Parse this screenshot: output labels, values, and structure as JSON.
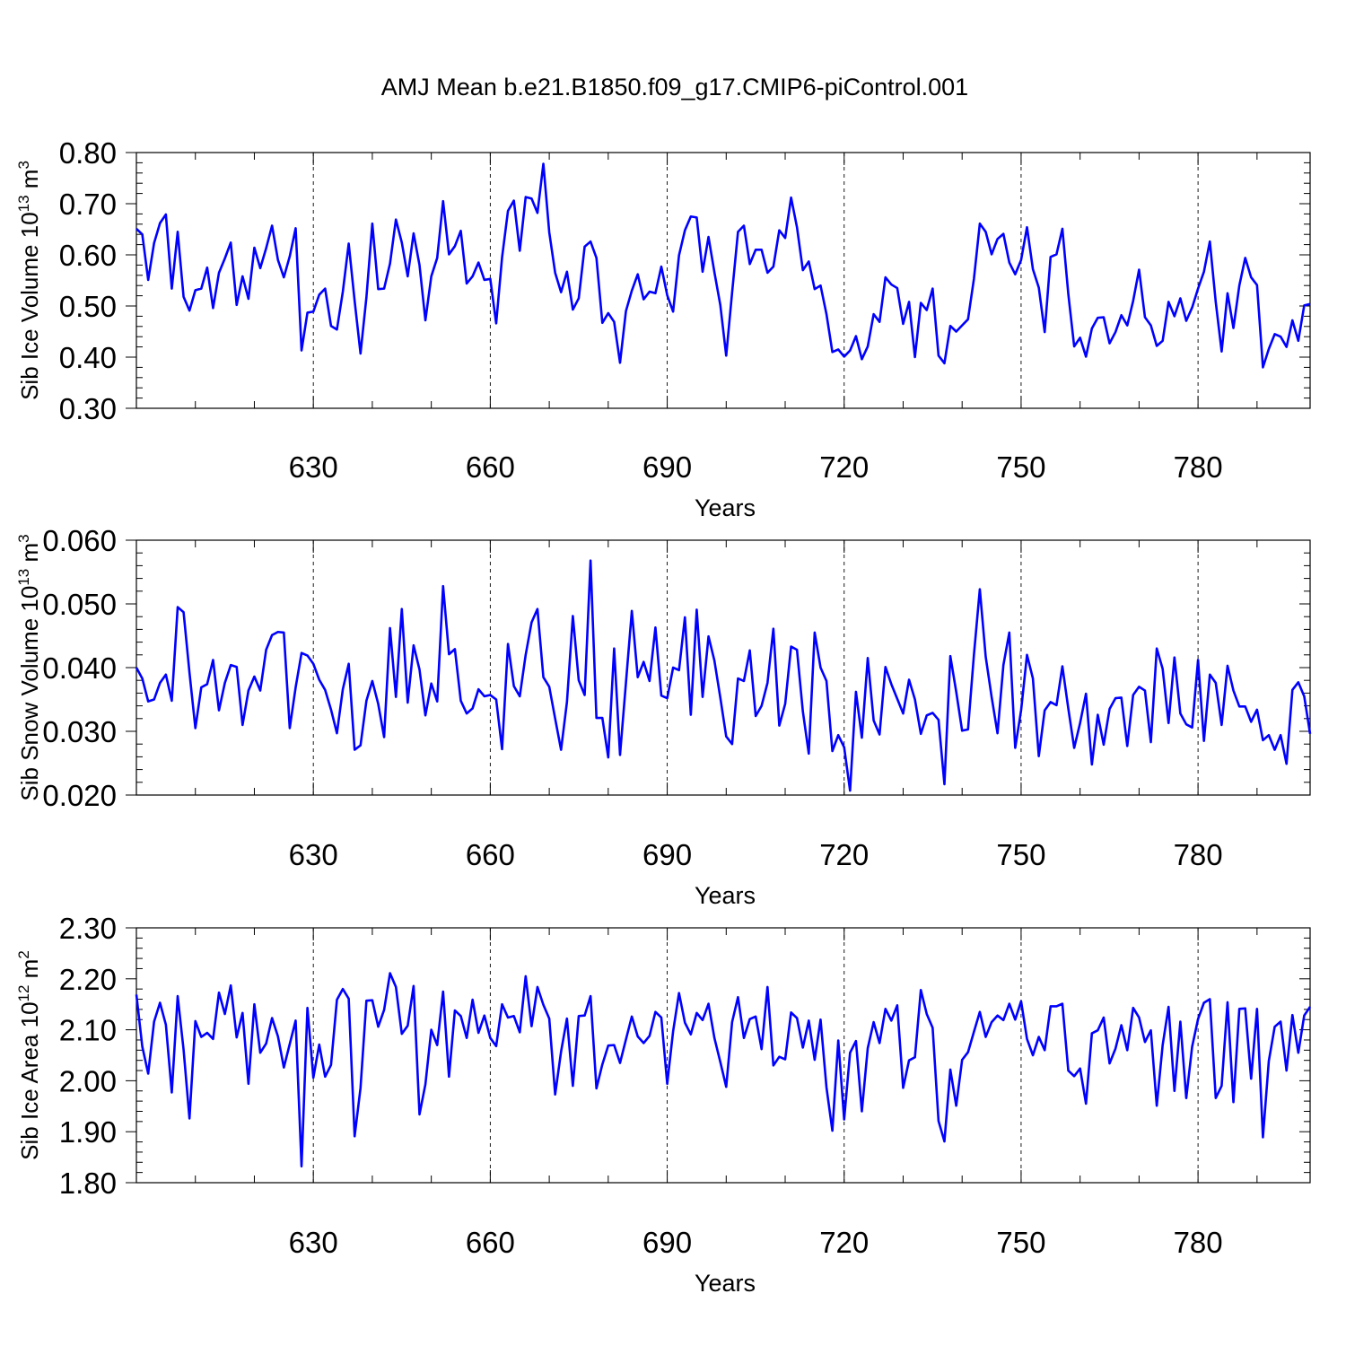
{
  "figure": {
    "title": "AMJ Mean b.e21.B1850.f09_g17.CMIP6-piControl.001",
    "line_color": "#0000ff"
  },
  "chart_data": [
    {
      "type": "line",
      "ylabel": "Sib Ice Volume",
      "yunit_base": "10",
      "yunit_exp": "13",
      "yunit_name": "m",
      "yunit_name_exp": "3",
      "xlabel": "Years",
      "xlim": [
        600,
        799
      ],
      "ylim": [
        0.3,
        0.8
      ],
      "xticks": [
        630,
        660,
        690,
        720,
        750,
        780
      ],
      "yticks": [
        0.3,
        0.4,
        0.5,
        0.6,
        0.7,
        0.8
      ],
      "ytick_labels": [
        "0.30",
        "0.40",
        "0.50",
        "0.60",
        "0.70",
        "0.80"
      ],
      "x_start": 600,
      "values": [
        0.651,
        0.64,
        0.551,
        0.623,
        0.662,
        0.679,
        0.534,
        0.645,
        0.518,
        0.491,
        0.531,
        0.534,
        0.575,
        0.496,
        0.565,
        0.593,
        0.624,
        0.502,
        0.558,
        0.514,
        0.614,
        0.574,
        0.613,
        0.657,
        0.59,
        0.556,
        0.597,
        0.652,
        0.413,
        0.487,
        0.489,
        0.522,
        0.534,
        0.461,
        0.454,
        0.528,
        0.622,
        0.51,
        0.407,
        0.517,
        0.661,
        0.533,
        0.534,
        0.583,
        0.669,
        0.624,
        0.558,
        0.642,
        0.58,
        0.472,
        0.558,
        0.594,
        0.705,
        0.601,
        0.617,
        0.647,
        0.544,
        0.558,
        0.585,
        0.551,
        0.553,
        0.466,
        0.595,
        0.686,
        0.706,
        0.608,
        0.713,
        0.71,
        0.682,
        0.778,
        0.644,
        0.565,
        0.527,
        0.567,
        0.493,
        0.515,
        0.616,
        0.626,
        0.594,
        0.467,
        0.486,
        0.469,
        0.389,
        0.49,
        0.53,
        0.562,
        0.513,
        0.528,
        0.525,
        0.577,
        0.521,
        0.489,
        0.599,
        0.648,
        0.675,
        0.673,
        0.567,
        0.635,
        0.566,
        0.502,
        0.403,
        0.526,
        0.645,
        0.657,
        0.582,
        0.61,
        0.61,
        0.565,
        0.577,
        0.648,
        0.633,
        0.712,
        0.654,
        0.57,
        0.587,
        0.533,
        0.54,
        0.484,
        0.41,
        0.415,
        0.401,
        0.413,
        0.441,
        0.396,
        0.421,
        0.484,
        0.469,
        0.556,
        0.542,
        0.535,
        0.465,
        0.508,
        0.4,
        0.506,
        0.492,
        0.534,
        0.403,
        0.388,
        0.461,
        0.45,
        0.462,
        0.474,
        0.553,
        0.661,
        0.645,
        0.601,
        0.631,
        0.641,
        0.585,
        0.562,
        0.59,
        0.654,
        0.572,
        0.536,
        0.449,
        0.596,
        0.601,
        0.651,
        0.524,
        0.421,
        0.438,
        0.401,
        0.456,
        0.477,
        0.478,
        0.427,
        0.449,
        0.482,
        0.462,
        0.51,
        0.571,
        0.478,
        0.462,
        0.422,
        0.432,
        0.508,
        0.48,
        0.515,
        0.471,
        0.497,
        0.534,
        0.567,
        0.626,
        0.508,
        0.411,
        0.525,
        0.457,
        0.54,
        0.594,
        0.556,
        0.541,
        0.38,
        0.416,
        0.445,
        0.44,
        0.42,
        0.472,
        0.432,
        0.501,
        0.504
      ]
    },
    {
      "type": "line",
      "ylabel": "Sib Snow Volume",
      "yunit_base": "10",
      "yunit_exp": "13",
      "yunit_name": "m",
      "yunit_name_exp": "3",
      "xlabel": "Years",
      "xlim": [
        600,
        799
      ],
      "ylim": [
        0.02,
        0.06
      ],
      "xticks": [
        630,
        660,
        690,
        720,
        750,
        780
      ],
      "yticks": [
        0.02,
        0.03,
        0.04,
        0.05,
        0.06
      ],
      "ytick_labels": [
        "0.020",
        "0.030",
        "0.040",
        "0.050",
        "0.060"
      ],
      "x_start": 600,
      "values": [
        0.04,
        0.0383,
        0.0347,
        0.035,
        0.0376,
        0.0389,
        0.0348,
        0.0495,
        0.0487,
        0.0392,
        0.0305,
        0.0369,
        0.0374,
        0.0412,
        0.0333,
        0.0376,
        0.0404,
        0.0401,
        0.031,
        0.0364,
        0.0386,
        0.0364,
        0.0428,
        0.0451,
        0.0456,
        0.0455,
        0.0305,
        0.0369,
        0.0423,
        0.0419,
        0.0406,
        0.0381,
        0.0365,
        0.0334,
        0.0297,
        0.0366,
        0.0406,
        0.0271,
        0.0278,
        0.0348,
        0.0379,
        0.0343,
        0.0291,
        0.0462,
        0.0354,
        0.0492,
        0.0345,
        0.0435,
        0.0397,
        0.0325,
        0.0375,
        0.0347,
        0.0528,
        0.0421,
        0.0429,
        0.0348,
        0.0328,
        0.0336,
        0.0366,
        0.0355,
        0.0357,
        0.035,
        0.0272,
        0.0437,
        0.0371,
        0.0355,
        0.042,
        0.0471,
        0.0492,
        0.0385,
        0.037,
        0.032,
        0.0271,
        0.0346,
        0.0481,
        0.038,
        0.0357,
        0.0568,
        0.0321,
        0.0321,
        0.0259,
        0.043,
        0.0263,
        0.0376,
        0.0489,
        0.0385,
        0.0409,
        0.0379,
        0.0463,
        0.0356,
        0.0352,
        0.04,
        0.0396,
        0.0479,
        0.0326,
        0.0491,
        0.0354,
        0.0449,
        0.0411,
        0.0353,
        0.0292,
        0.028,
        0.0383,
        0.0379,
        0.0427,
        0.0324,
        0.034,
        0.0376,
        0.0461,
        0.0309,
        0.0343,
        0.0433,
        0.0428,
        0.0331,
        0.0265,
        0.0455,
        0.04,
        0.0379,
        0.0269,
        0.0294,
        0.0275,
        0.0207,
        0.0362,
        0.029,
        0.0415,
        0.0317,
        0.0295,
        0.0401,
        0.0374,
        0.0351,
        0.0328,
        0.0381,
        0.035,
        0.0296,
        0.0325,
        0.0329,
        0.0318,
        0.0217,
        0.0418,
        0.0362,
        0.0301,
        0.0303,
        0.042,
        0.0523,
        0.0417,
        0.0354,
        0.0297,
        0.0404,
        0.0455,
        0.0274,
        0.0333,
        0.042,
        0.0383,
        0.0261,
        0.0333,
        0.0346,
        0.0341,
        0.0402,
        0.0336,
        0.0274,
        0.0313,
        0.0359,
        0.0248,
        0.0326,
        0.0279,
        0.0335,
        0.0352,
        0.0353,
        0.0277,
        0.0357,
        0.037,
        0.0364,
        0.0283,
        0.043,
        0.0398,
        0.0313,
        0.0416,
        0.0328,
        0.0311,
        0.0306,
        0.0412,
        0.0285,
        0.0389,
        0.0376,
        0.031,
        0.0403,
        0.0364,
        0.0339,
        0.0339,
        0.0315,
        0.0334,
        0.0286,
        0.0294,
        0.0271,
        0.0294,
        0.0249,
        0.0365,
        0.0377,
        0.0355,
        0.0296
      ]
    },
    {
      "type": "line",
      "ylabel": "Sib Ice Area",
      "yunit_base": "10",
      "yunit_exp": "12",
      "yunit_name": "m",
      "yunit_name_exp": "2",
      "xlabel": "Years",
      "xlim": [
        600,
        799
      ],
      "ylim": [
        1.8,
        2.3
      ],
      "xticks": [
        630,
        660,
        690,
        720,
        750,
        780
      ],
      "yticks": [
        1.8,
        1.9,
        2.0,
        2.1,
        2.2,
        2.3
      ],
      "ytick_labels": [
        "1.80",
        "1.90",
        "2.00",
        "2.10",
        "2.20",
        "2.30"
      ],
      "x_start": 600,
      "values": [
        2.169,
        2.067,
        2.014,
        2.116,
        2.153,
        2.11,
        1.977,
        2.166,
        2.061,
        1.926,
        2.117,
        2.086,
        2.094,
        2.082,
        2.173,
        2.131,
        2.187,
        2.085,
        2.133,
        1.994,
        2.15,
        2.055,
        2.073,
        2.123,
        2.087,
        2.026,
        2.072,
        2.118,
        1.832,
        2.143,
        2.006,
        2.071,
        2.008,
        2.031,
        2.159,
        2.18,
        2.161,
        1.891,
        1.986,
        2.157,
        2.158,
        2.106,
        2.139,
        2.211,
        2.184,
        2.092,
        2.108,
        2.186,
        1.934,
        1.993,
        2.1,
        2.07,
        2.175,
        2.008,
        2.138,
        2.127,
        2.084,
        2.159,
        2.094,
        2.128,
        2.084,
        2.068,
        2.15,
        2.124,
        2.127,
        2.095,
        2.205,
        2.107,
        2.184,
        2.149,
        2.122,
        1.973,
        2.057,
        2.122,
        1.99,
        2.127,
        2.128,
        2.166,
        1.985,
        2.032,
        2.069,
        2.07,
        2.035,
        2.081,
        2.126,
        2.087,
        2.074,
        2.088,
        2.135,
        2.124,
        1.994,
        2.097,
        2.172,
        2.114,
        2.091,
        2.133,
        2.119,
        2.151,
        2.084,
        2.037,
        1.988,
        2.115,
        2.164,
        2.084,
        2.121,
        2.126,
        2.062,
        2.184,
        2.03,
        2.047,
        2.042,
        2.134,
        2.123,
        2.065,
        2.118,
        2.041,
        2.12,
        1.987,
        1.902,
        2.079,
        1.924,
        2.055,
        2.078,
        1.94,
        2.064,
        2.115,
        2.074,
        2.141,
        2.118,
        2.148,
        1.986,
        2.04,
        2.046,
        2.178,
        2.131,
        2.104,
        1.921,
        1.881,
        2.022,
        1.951,
        2.041,
        2.056,
        2.096,
        2.135,
        2.086,
        2.115,
        2.128,
        2.119,
        2.151,
        2.12,
        2.156,
        2.082,
        2.05,
        2.086,
        2.06,
        2.146,
        2.146,
        2.151,
        2.02,
        2.009,
        2.024,
        1.955,
        2.093,
        2.099,
        2.124,
        2.034,
        2.063,
        2.109,
        2.06,
        2.143,
        2.124,
        2.076,
        2.099,
        1.951,
        2.07,
        2.145,
        1.98,
        2.116,
        1.966,
        2.067,
        2.121,
        2.153,
        2.16,
        1.966,
        1.99,
        2.154,
        1.958,
        2.141,
        2.142,
        2.004,
        2.141,
        1.889,
        2.039,
        2.106,
        2.116,
        2.02,
        2.129,
        2.055,
        2.128,
        2.145
      ]
    }
  ]
}
